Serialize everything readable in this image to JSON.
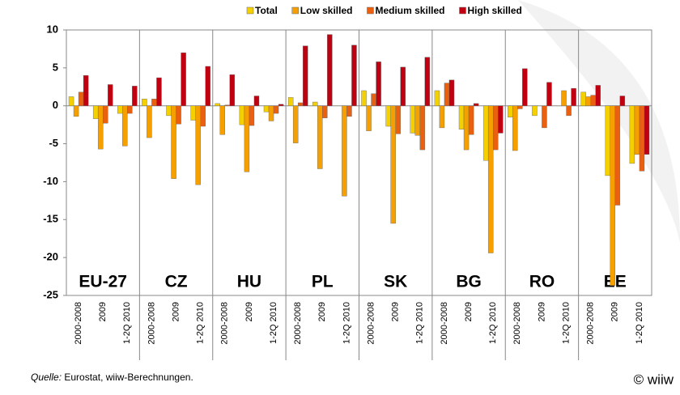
{
  "chart_data": {
    "type": "bar",
    "groups": [
      "EU-27",
      "CZ",
      "HU",
      "PL",
      "SK",
      "BG",
      "RO",
      "EE"
    ],
    "categories": [
      "2000-2008",
      "2009",
      "1-2Q 2010",
      "2000-2008",
      "2009",
      "1-2Q 2010",
      "2000-2008",
      "2009",
      "1-2Q 2010",
      "2000-2008",
      "2009",
      "1-2Q 2010",
      "2000-2008",
      "2009",
      "1-2Q 2010",
      "2000-2008",
      "2009",
      "1-2Q 2010",
      "2000-2008",
      "2009",
      "1-2Q 2010",
      "2000-2008",
      "2009",
      "1-2Q 2010"
    ],
    "series": [
      {
        "name": "Total",
        "color": "#f5d000",
        "values": [
          1.2,
          -1.7,
          -1.0,
          0.9,
          -1.3,
          -1.9,
          0.3,
          -2.5,
          -0.8,
          1.1,
          0.5,
          0.0,
          2.0,
          -2.7,
          -3.6,
          2.0,
          -3.1,
          -7.2,
          -1.5,
          -1.3,
          0.0,
          1.8,
          -9.2,
          -7.6
        ]
      },
      {
        "name": "Low skilled",
        "color": "#f5a000",
        "values": [
          -1.4,
          -5.7,
          -5.3,
          -4.2,
          -9.6,
          -10.4,
          -3.8,
          -8.7,
          -2.0,
          -4.9,
          -8.3,
          -11.9,
          -3.3,
          -15.5,
          -3.9,
          -2.9,
          -5.8,
          -19.4,
          -5.9,
          0.0,
          2.0,
          1.2,
          -23.7,
          -6.4
        ]
      },
      {
        "name": "Medium skilled",
        "color": "#e86010",
        "values": [
          1.8,
          -2.3,
          -1.0,
          0.9,
          -2.4,
          -2.7,
          0.1,
          -2.6,
          -1.0,
          0.4,
          -1.6,
          -1.4,
          1.6,
          -3.7,
          -5.8,
          3.0,
          -3.8,
          -5.8,
          -0.4,
          -2.9,
          -1.3,
          1.4,
          -13.1,
          -8.6
        ]
      },
      {
        "name": "High skilled",
        "color": "#c00010",
        "values": [
          4.0,
          2.8,
          2.6,
          3.7,
          7.0,
          5.2,
          4.1,
          1.3,
          0.2,
          7.9,
          9.4,
          8.0,
          5.8,
          5.1,
          6.4,
          3.4,
          0.3,
          -3.6,
          4.9,
          3.1,
          2.3,
          2.7,
          1.3,
          -6.4
        ]
      }
    ],
    "ylim": [
      -25,
      10
    ],
    "yticks": [
      10,
      5,
      0,
      -5,
      -10,
      -15,
      -20,
      -25
    ],
    "source": {
      "label": "Quelle:",
      "text": "Eurostat, wiiw-Berechnungen."
    },
    "logo": "© wiiw"
  }
}
